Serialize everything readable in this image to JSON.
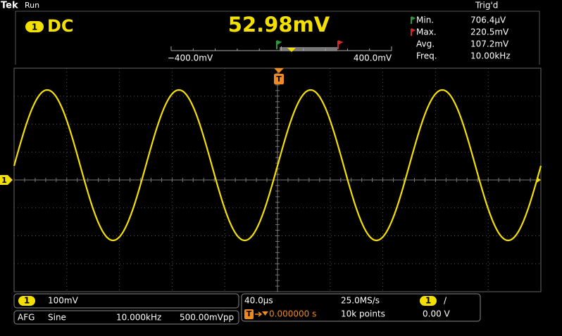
{
  "header": {
    "brand": "Tek",
    "status": "Run",
    "trigger_status": "Trig'd"
  },
  "measurement": {
    "channel": "1",
    "coupling": "DC",
    "value": "52.98mV",
    "scale_min": "−400.0mV",
    "scale_max": "400.0mV"
  },
  "stats": [
    {
      "label": "Min.",
      "value": "706.4µV"
    },
    {
      "label": "Max.",
      "value": "220.5mV"
    },
    {
      "label": "Avg.",
      "value": "107.2mV"
    },
    {
      "label": "Freq.",
      "value": "10.00kHz"
    }
  ],
  "graticule": {
    "channel_marker": "1",
    "trigger_marker": "T"
  },
  "channel_panel": {
    "channel": "1",
    "scale": "100mV"
  },
  "afg_panel": {
    "source": "AFG",
    "waveform": "Sine",
    "frequency": "10.000kHz",
    "amplitude": "500.00mVpp"
  },
  "timebase_panel": {
    "time_per_div": "40.0µs",
    "sample_rate": "25.0MS/s",
    "trigger_source": "1",
    "trigger_slope": "/",
    "trigger_icon": "T",
    "trigger_position": "0.000000 s",
    "record_length": "10k points",
    "trigger_level": "0.00 V"
  }
}
